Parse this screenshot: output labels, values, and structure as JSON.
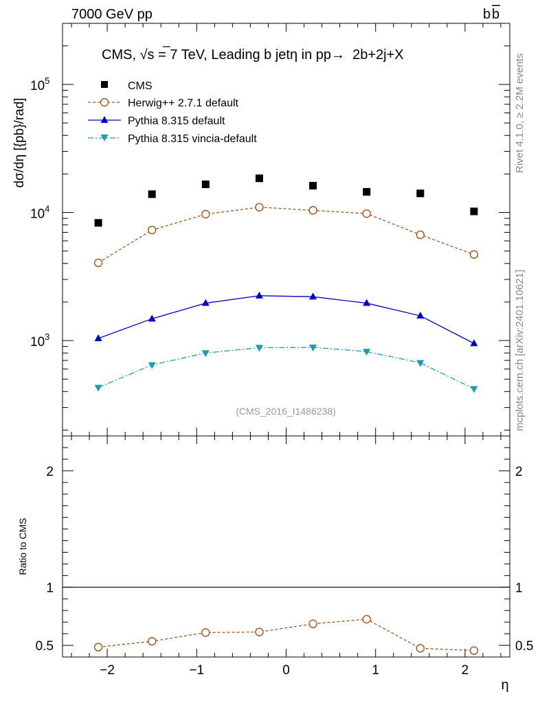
{
  "header": {
    "left": "7000 GeV pp",
    "right_b1": "b",
    "right_b2": "b"
  },
  "side": {
    "rivet": "Rivet 4.1.0, ≥ 2.2M events",
    "mcplots": "mcplots.cern.ch [arXiv:2401.10621]"
  },
  "colors": {
    "cms": "#000000",
    "herwig": "#a0521b",
    "pythia": "#0000cc",
    "vincia": "#1a9db8"
  },
  "chart_data": [
    {
      "type": "scatter",
      "panel": "main",
      "title_prefix": "CMS, ",
      "title_sqrt": "√s",
      "title_suffix": " = 7 TeV, Leading b jetη in pp→  2b+2j+X",
      "ylabel": "dσ/dη [{pb}/rad]",
      "yscale": "log",
      "ylim": [
        180,
        300000
      ],
      "xlim": [
        -2.5,
        2.5
      ],
      "y_ticks": [
        {
          "value": 1000,
          "base": "10",
          "exp": "3"
        },
        {
          "value": 10000,
          "base": "10",
          "exp": "4"
        },
        {
          "value": 100000,
          "base": "10",
          "exp": "5"
        }
      ],
      "watermark": "(CMS_2016_I1486238)",
      "x": [
        -2.1,
        -1.5,
        -0.9,
        -0.3,
        0.3,
        0.9,
        1.5,
        2.1
      ],
      "series": [
        {
          "name": "CMS",
          "marker": "square",
          "values": [
            8300,
            13900,
            16600,
            18500,
            16200,
            14500,
            14100,
            10200
          ]
        },
        {
          "name": "Herwig++ 2.7.1 default",
          "marker": "open-circle",
          "line": "dashed",
          "values": [
            4050,
            7300,
            9700,
            11000,
            10400,
            9800,
            6700,
            4700
          ]
        },
        {
          "name": "Pythia 8.315 default",
          "marker": "triangle-up",
          "line": "solid",
          "values": [
            1040,
            1480,
            1960,
            2240,
            2200,
            1960,
            1560,
            950
          ]
        },
        {
          "name": "Pythia 8.315 vincia-default",
          "marker": "triangle-down",
          "line": "dashdot",
          "values": [
            430,
            645,
            800,
            880,
            885,
            820,
            670,
            420
          ]
        }
      ]
    },
    {
      "type": "line",
      "panel": "ratio",
      "ylabel": "Ratio to CMS",
      "xlabel": "η",
      "ylim": [
        0.4,
        2.3
      ],
      "xlim": [
        -2.5,
        2.5
      ],
      "y_tick_labels": [
        "0.5",
        "1",
        "2"
      ],
      "y_tick_values": [
        0.5,
        1,
        2
      ],
      "x_tick_labels": [
        "−2",
        "−1",
        "0",
        "1",
        "2"
      ],
      "x_tick_values": [
        -2,
        -1,
        0,
        1,
        2
      ],
      "reference": 1,
      "x": [
        -2.1,
        -1.5,
        -0.9,
        -0.3,
        0.3,
        0.9,
        1.5,
        2.1
      ],
      "series": [
        {
          "name": "Herwig++ 2.7.1 default",
          "values": [
            0.485,
            0.535,
            0.61,
            0.615,
            0.685,
            0.725,
            0.475,
            0.455
          ]
        }
      ]
    }
  ]
}
